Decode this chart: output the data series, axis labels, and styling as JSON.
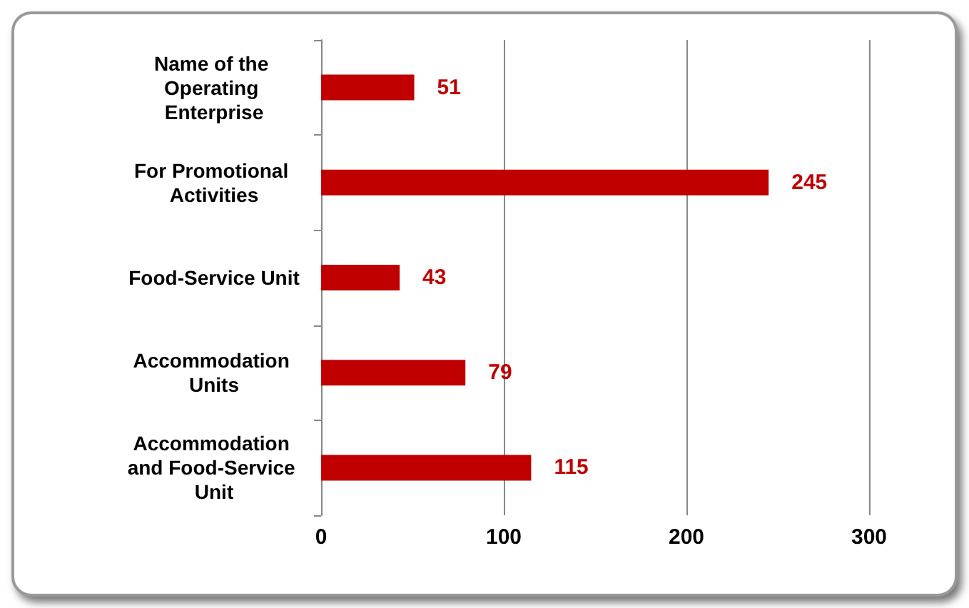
{
  "chart_data": {
    "type": "bar",
    "orientation": "horizontal",
    "categories": [
      "Name of the Operating Enterprise",
      "For Promotional Activities",
      "Food-Service Unit",
      "Accommodation Units",
      "Accommodation and Food-Service Unit"
    ],
    "values": [
      51,
      245,
      43,
      79,
      115
    ],
    "color": "#c00000",
    "xlim": [
      0,
      300
    ],
    "xticks": [
      0,
      100,
      200,
      300
    ],
    "grid": "x",
    "data_labels": true
  }
}
